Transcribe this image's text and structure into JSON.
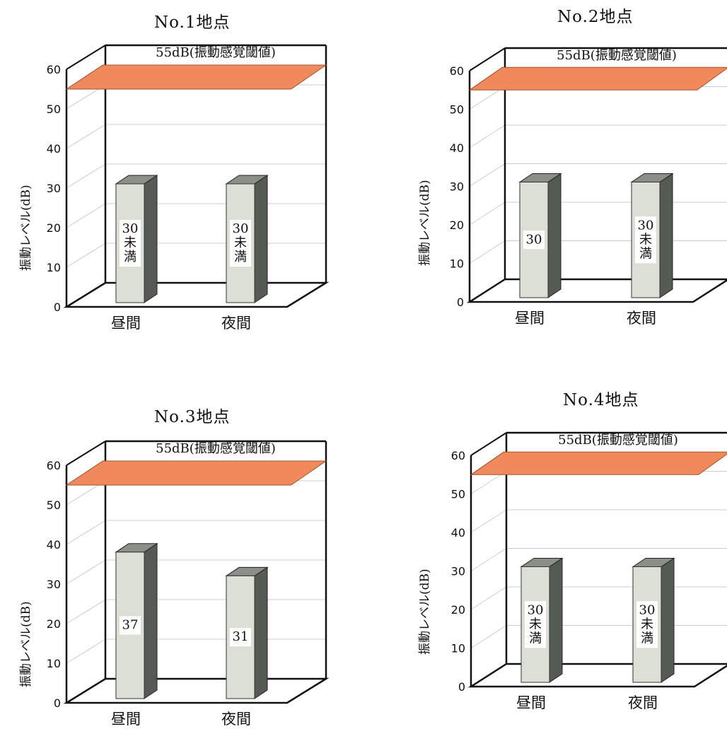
{
  "chart_data": [
    {
      "type": "bar",
      "title": "No.1地点",
      "ylabel": "振動レベル(dB)",
      "xlabel": "",
      "categories": [
        "昼間",
        "夜間"
      ],
      "values": [
        30,
        30
      ],
      "value_labels": [
        "30未満",
        "30未満"
      ],
      "ylim": [
        0,
        60
      ],
      "yticks": [
        "0",
        "10",
        "20",
        "30",
        "40",
        "50",
        "60"
      ],
      "threshold": {
        "value": 55,
        "label": "55dB(振動感覚閾値)"
      },
      "grid": true
    },
    {
      "type": "bar",
      "title": "No.2地点",
      "ylabel": "振動レベル(dB)",
      "xlabel": "",
      "categories": [
        "昼間",
        "夜間"
      ],
      "values": [
        30,
        30
      ],
      "value_labels": [
        "30",
        "30未満"
      ],
      "ylim": [
        0,
        60
      ],
      "yticks": [
        "0",
        "10",
        "20",
        "30",
        "40",
        "50",
        "60"
      ],
      "threshold": {
        "value": 55,
        "label": "55dB(振動感覚閾値)"
      },
      "grid": true
    },
    {
      "type": "bar",
      "title": "No.3地点",
      "ylabel": "振動レベル(dB)",
      "xlabel": "",
      "categories": [
        "昼間",
        "夜間"
      ],
      "values": [
        37,
        31
      ],
      "value_labels": [
        "37",
        "31"
      ],
      "ylim": [
        0,
        60
      ],
      "yticks": [
        "0",
        "10",
        "20",
        "30",
        "40",
        "50",
        "60"
      ],
      "threshold": {
        "value": 55,
        "label": "55dB(振動感覚閾値)"
      },
      "grid": true
    },
    {
      "type": "bar",
      "title": "No.4地点",
      "ylabel": "振動レベル(dB)",
      "xlabel": "",
      "categories": [
        "昼間",
        "夜間"
      ],
      "values": [
        30,
        30
      ],
      "value_labels": [
        "30未満",
        "30未満"
      ],
      "ylim": [
        0,
        60
      ],
      "yticks": [
        "0",
        "10",
        "20",
        "30",
        "40",
        "50",
        "60"
      ],
      "threshold": {
        "value": 55,
        "label": "55dB(振動感覚閾値)"
      },
      "grid": true
    }
  ],
  "colors": {
    "threshold_fill": "#f08a5d",
    "bar_front": "#dcdfd6",
    "bar_side": "#555a55",
    "bar_top": "#8a8f88",
    "frame": "#111111",
    "grid": "#cccccc"
  }
}
